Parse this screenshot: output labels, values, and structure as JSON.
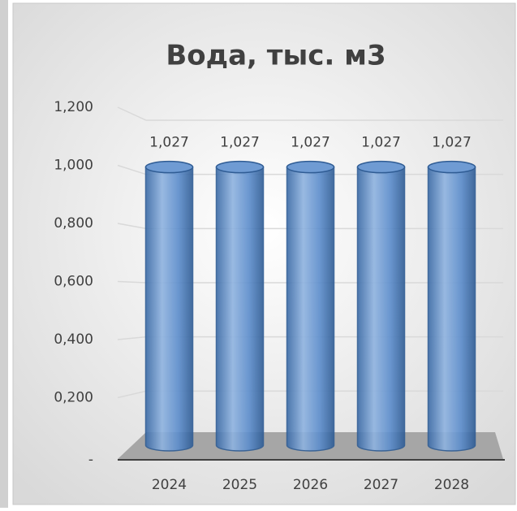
{
  "chart_data": {
    "type": "bar",
    "title": "Вода, тыс. м3",
    "categories": [
      "2024",
      "2025",
      "2026",
      "2027",
      "2028"
    ],
    "values": [
      1.027,
      1.027,
      1.027,
      1.027,
      1.027
    ],
    "value_labels": [
      "1,027",
      "1,027",
      "1,027",
      "1,027",
      "1,027"
    ],
    "color": "#4f81bd",
    "ylim": [
      0,
      1.2
    ],
    "yticks": [
      {
        "value": 0,
        "label": "-"
      },
      {
        "value": 0.2,
        "label": "0,200"
      },
      {
        "value": 0.4,
        "label": "0,400"
      },
      {
        "value": 0.6,
        "label": "0,600"
      },
      {
        "value": 0.8,
        "label": "0,800"
      },
      {
        "value": 1,
        "label": "1,000"
      },
      {
        "value": 1.2,
        "label": "1,200"
      }
    ],
    "grid": true
  }
}
